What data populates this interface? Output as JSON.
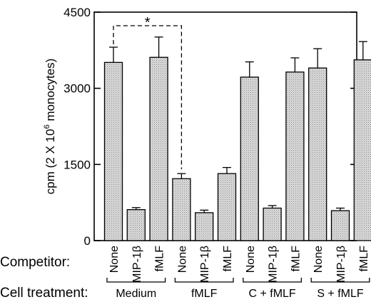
{
  "chart_data": {
    "type": "bar",
    "ylabel": "cpm (2 X 10",
    "ylabel_sup": "6",
    "ylabel_tail": " monocytes)",
    "ylim": [
      0,
      4500
    ],
    "yticks": [
      0,
      1500,
      3000,
      4500
    ],
    "ytick_labels": [
      "0",
      "1500",
      "3000",
      "4500"
    ],
    "grid": false,
    "legend": "none",
    "bar_color": "#d6d6d6",
    "bar_pattern": "stippled",
    "row_labels": {
      "competitor": "Competitor:",
      "cell_treatment": "Cell treatment:"
    },
    "groups": [
      {
        "label": "Medium",
        "bars": [
          {
            "competitor": "None",
            "value": 3510,
            "error": 300
          },
          {
            "competitor": "MIP-1β",
            "value": 610,
            "error": 40
          },
          {
            "competitor": "fMLF",
            "value": 3610,
            "error": 400
          }
        ]
      },
      {
        "label": "fMLF",
        "bars": [
          {
            "competitor": "None",
            "value": 1220,
            "error": 100
          },
          {
            "competitor": "MIP-1β",
            "value": 550,
            "error": 50
          },
          {
            "competitor": "fMLF",
            "value": 1320,
            "error": 120
          }
        ]
      },
      {
        "label": "C + fMLF",
        "bars": [
          {
            "competitor": "None",
            "value": 3220,
            "error": 300
          },
          {
            "competitor": "MIP-1β",
            "value": 640,
            "error": 50
          },
          {
            "competitor": "fMLF",
            "value": 3320,
            "error": 280
          }
        ]
      },
      {
        "label": "S + fMLF",
        "bars": [
          {
            "competitor": "None",
            "value": 3400,
            "error": 380
          },
          {
            "competitor": "MIP-1β",
            "value": 590,
            "error": 50
          },
          {
            "competitor": "fMLF",
            "value": 3560,
            "error": 360
          }
        ]
      }
    ],
    "annotations": [
      {
        "text": "*",
        "type": "significance-bracket",
        "from": "Medium / None",
        "to": "fMLF / None"
      }
    ]
  }
}
